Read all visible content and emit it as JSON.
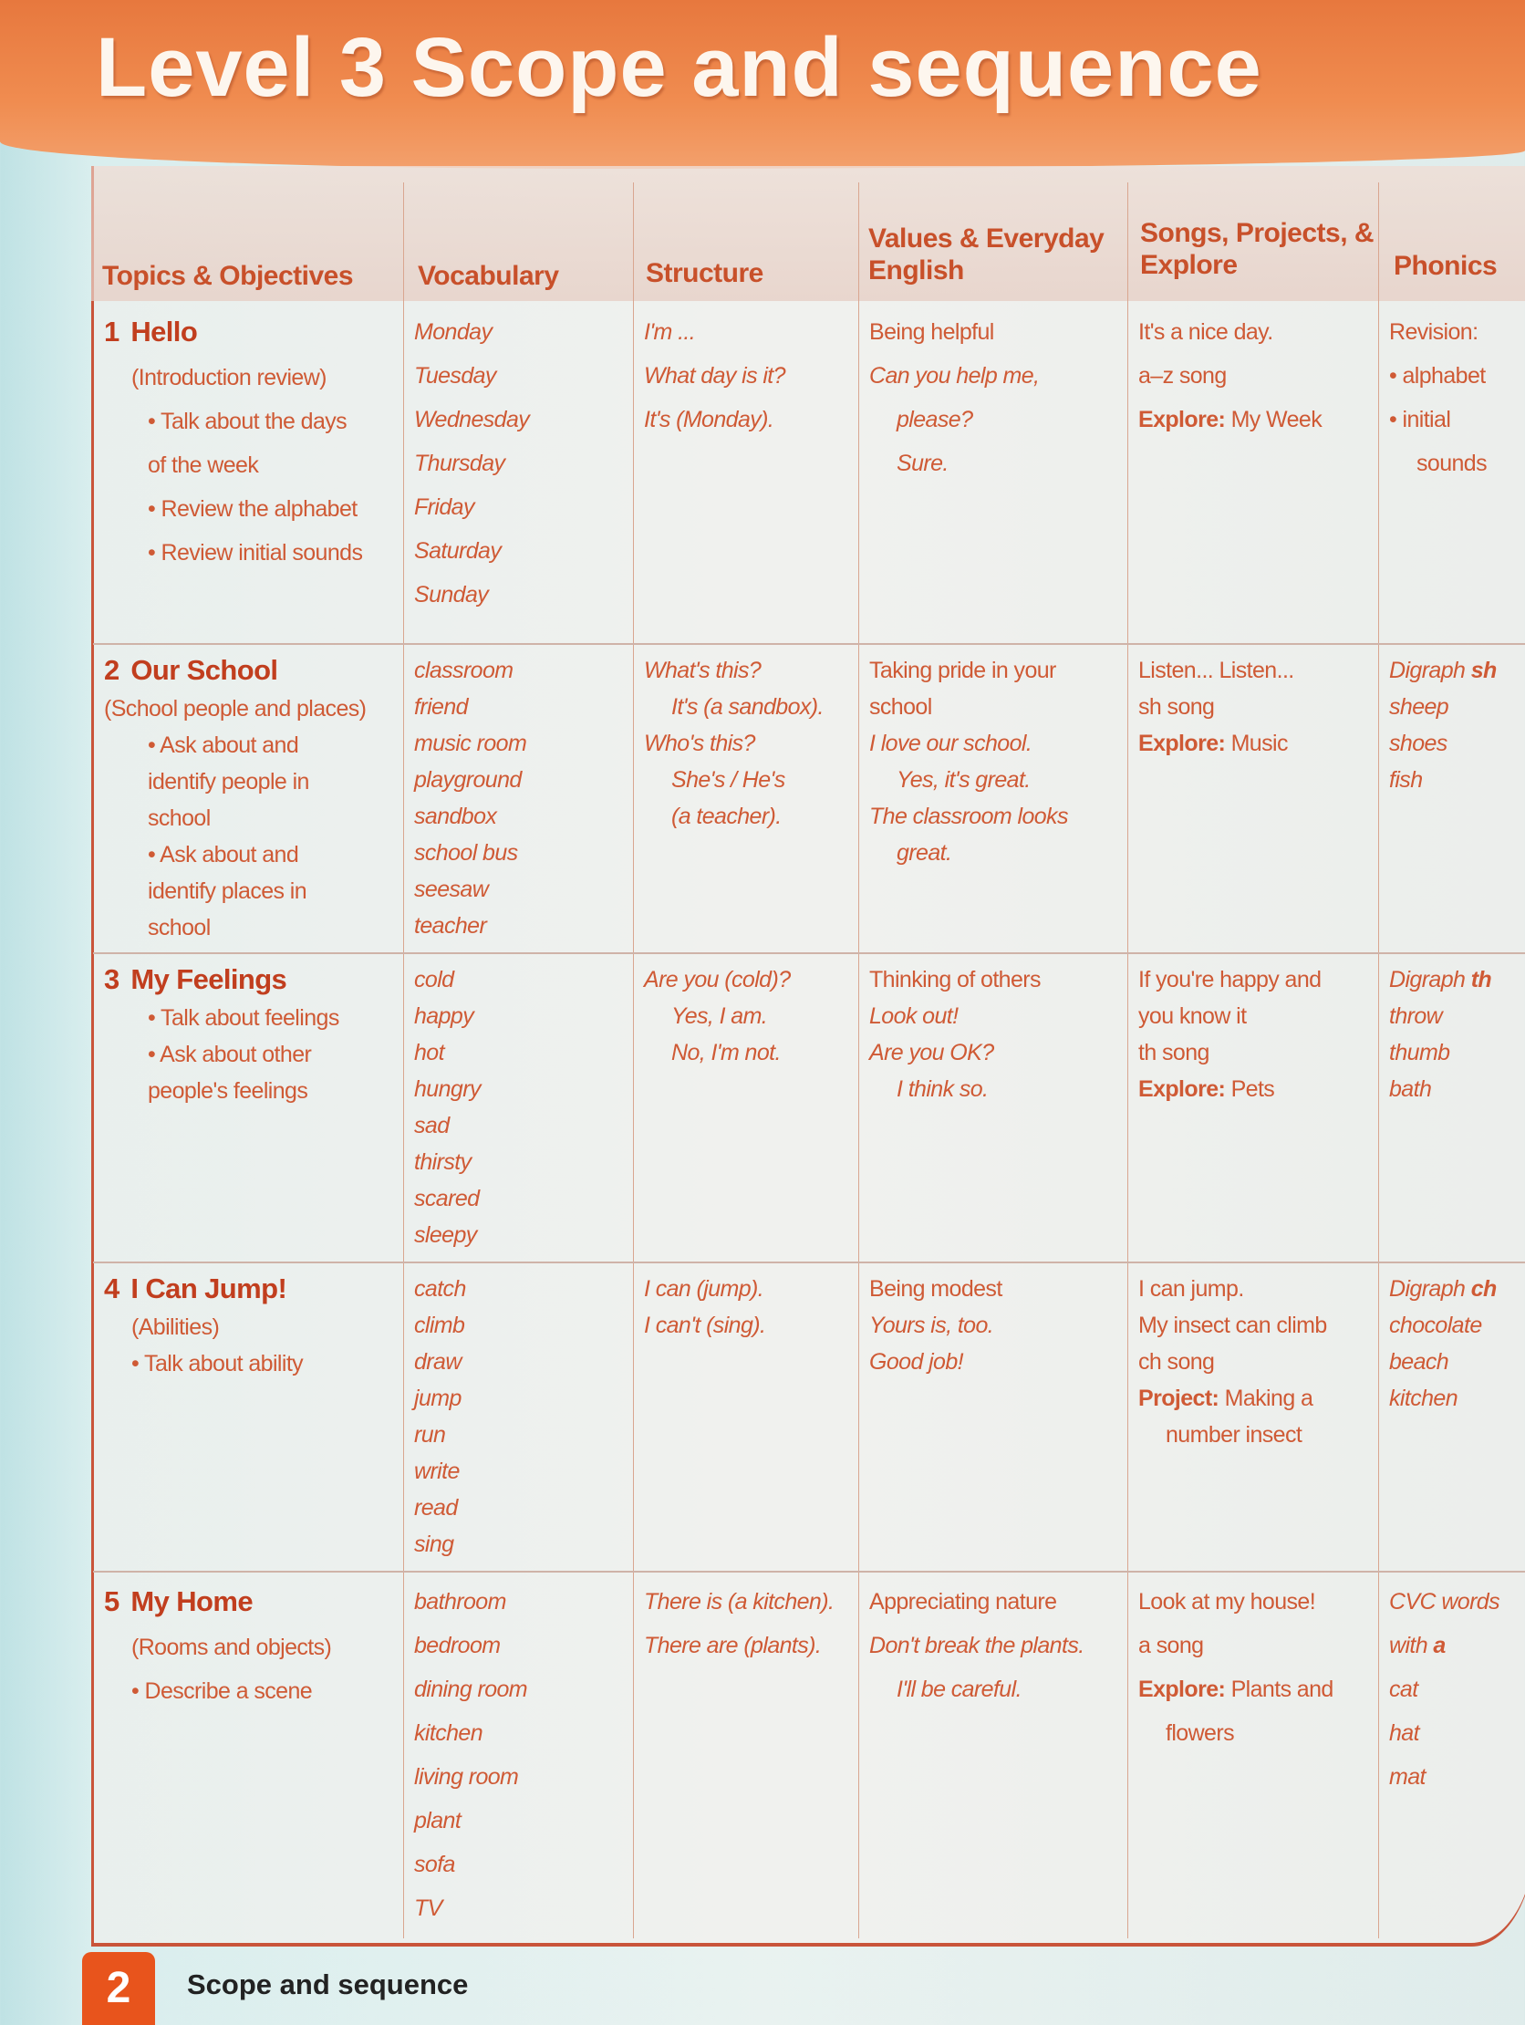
{
  "title": "Level 3 Scope and sequence",
  "headers": [
    "Topics & Objectives",
    "Vocabulary",
    "Structure",
    "Values & Everyday English",
    "Songs, Projects, & Explore",
    "Phonics"
  ],
  "units": [
    {
      "number": "1",
      "name": "Hello",
      "topics": [
        {
          "text": "(Introduction review)",
          "style": "ind"
        },
        {
          "text": "Talk about the days",
          "style": "bul ind2"
        },
        {
          "text": "of the week",
          "style": "ind2 ind"
        },
        {
          "text": "Review the alphabet",
          "style": "bul ind2"
        },
        {
          "text": "Review initial sounds",
          "style": "bul ind2"
        }
      ],
      "vocabulary": [
        "Monday",
        "Tuesday",
        "Wednesday",
        "Thursday",
        "Friday",
        "Saturday",
        "Sunday"
      ],
      "structure": [
        {
          "text": "I'm ..."
        },
        {
          "text": "What day is it?"
        },
        {
          "text": "It's (Monday)."
        }
      ],
      "values": [
        {
          "text": "Being helpful",
          "style": ""
        },
        {
          "text": "Can you help me,",
          "style": "it"
        },
        {
          "text": "please?",
          "style": "it ind"
        },
        {
          "text": "Sure.",
          "style": "it ind"
        }
      ],
      "songs": [
        {
          "text": "It's a nice day."
        },
        {
          "text": "a–z song"
        },
        {
          "label": "Explore:",
          "text": " My Week"
        }
      ],
      "phonics": [
        {
          "text": "Revision:"
        },
        {
          "text": "alphabet",
          "style": "bul"
        },
        {
          "text": "initial",
          "style": "bul"
        },
        {
          "text": "sounds",
          "style": "ind"
        }
      ]
    },
    {
      "number": "2",
      "name": "Our School",
      "topics": [
        {
          "text": "(School people and places)",
          "style": ""
        },
        {
          "text": "Ask about and",
          "style": "bul ind2"
        },
        {
          "text": "identify people in",
          "style": "ind2 ind"
        },
        {
          "text": "school",
          "style": "ind2 ind"
        },
        {
          "text": "Ask about and",
          "style": "bul ind2"
        },
        {
          "text": "identify places in",
          "style": "ind2 ind"
        },
        {
          "text": "school",
          "style": "ind2 ind"
        }
      ],
      "vocabulary": [
        "classroom",
        "friend",
        "music room",
        "playground",
        "sandbox",
        "school bus",
        "seesaw",
        "teacher"
      ],
      "structure": [
        {
          "text": "What's this?"
        },
        {
          "text": "It's (a sandbox).",
          "style": "ind"
        },
        {
          "text": "Who's this?"
        },
        {
          "text": "She's / He's",
          "style": "ind"
        },
        {
          "text": "(a teacher).",
          "style": "ind"
        }
      ],
      "values": [
        {
          "text": "Taking pride in your",
          "style": ""
        },
        {
          "text": "school",
          "style": ""
        },
        {
          "text": "I love our school.",
          "style": "it"
        },
        {
          "text": "Yes, it's great.",
          "style": "it ind"
        },
        {
          "text": "The classroom looks",
          "style": "it"
        },
        {
          "text": "great.",
          "style": "it ind"
        }
      ],
      "songs": [
        {
          "text": "Listen... Listen..."
        },
        {
          "text": "sh song"
        },
        {
          "label": "Explore:",
          "text": " Music"
        }
      ],
      "phonics": [
        {
          "text": "Digraph ",
          "bold": "sh"
        },
        {
          "text": "sheep"
        },
        {
          "text": "shoes"
        },
        {
          "text": "fish"
        }
      ]
    },
    {
      "number": "3",
      "name": "My Feelings",
      "topics": [
        {
          "text": "Talk about feelings",
          "style": "bul ind2"
        },
        {
          "text": "Ask about other",
          "style": "bul ind2"
        },
        {
          "text": "people's feelings",
          "style": "ind2 ind"
        }
      ],
      "vocabulary": [
        "cold",
        "happy",
        "hot",
        "hungry",
        "sad",
        "thirsty",
        "scared",
        "sleepy"
      ],
      "structure": [
        {
          "text": "Are you (cold)?"
        },
        {
          "text": "Yes, I am.",
          "style": "ind"
        },
        {
          "text": "No, I'm not.",
          "style": "ind"
        }
      ],
      "values": [
        {
          "text": "Thinking of others",
          "style": ""
        },
        {
          "text": "Look out!",
          "style": "it"
        },
        {
          "text": "Are you OK?",
          "style": "it"
        },
        {
          "text": "I think so.",
          "style": "it ind"
        }
      ],
      "songs": [
        {
          "text": "If you're happy and"
        },
        {
          "text": "you know it"
        },
        {
          "text": "th song"
        },
        {
          "label": "Explore:",
          "text": " Pets"
        }
      ],
      "phonics": [
        {
          "text": "Digraph ",
          "bold": "th"
        },
        {
          "text": "throw"
        },
        {
          "text": "thumb"
        },
        {
          "text": "bath"
        }
      ]
    },
    {
      "number": "4",
      "name": "I Can Jump!",
      "topics": [
        {
          "text": "(Abilities)",
          "style": "ind"
        },
        {
          "text": "Talk about ability",
          "style": "bul ind"
        }
      ],
      "vocabulary": [
        "catch",
        "climb",
        "draw",
        "jump",
        "run",
        "write",
        "read",
        "sing"
      ],
      "structure": [
        {
          "text": "I can (jump)."
        },
        {
          "text": "I can't (sing)."
        }
      ],
      "values": [
        {
          "text": "Being modest",
          "style": ""
        },
        {
          "text": "Yours is, too.",
          "style": "it"
        },
        {
          "text": "Good job!",
          "style": "it"
        }
      ],
      "songs": [
        {
          "text": "I can jump."
        },
        {
          "text": "My insect can climb"
        },
        {
          "text": "ch song"
        },
        {
          "label": "Project:",
          "text": " Making a"
        },
        {
          "text": "number insect",
          "style": "ind"
        }
      ],
      "phonics": [
        {
          "text": "Digraph ",
          "bold": "ch"
        },
        {
          "text": "chocolate"
        },
        {
          "text": "beach"
        },
        {
          "text": "kitchen"
        }
      ]
    },
    {
      "number": "5",
      "name": "My Home",
      "topics": [
        {
          "text": "(Rooms and objects)",
          "style": "ind"
        },
        {
          "text": "Describe a scene",
          "style": "bul ind"
        }
      ],
      "vocabulary": [
        "bathroom",
        "bedroom",
        "dining room",
        "kitchen",
        "living room",
        "plant",
        "sofa",
        "TV"
      ],
      "structure": [
        {
          "text": "There is (a kitchen)."
        },
        {
          "text": "There are (plants)."
        }
      ],
      "values": [
        {
          "text": "Appreciating nature",
          "style": ""
        },
        {
          "text": "Don't break the plants.",
          "style": "it"
        },
        {
          "text": "I'll be careful.",
          "style": "it ind"
        }
      ],
      "songs": [
        {
          "text": "Look at my house!"
        },
        {
          "text": "a song"
        },
        {
          "label": "Explore:",
          "text": " Plants and"
        },
        {
          "text": "flowers",
          "style": "ind"
        }
      ],
      "phonics": [
        {
          "text": "CVC words"
        },
        {
          "text": "with ",
          "bold": "a"
        },
        {
          "text": "cat"
        },
        {
          "text": "hat"
        },
        {
          "text": "mat"
        }
      ]
    }
  ],
  "footer": {
    "page_number": "2",
    "section": "Scope and sequence"
  }
}
